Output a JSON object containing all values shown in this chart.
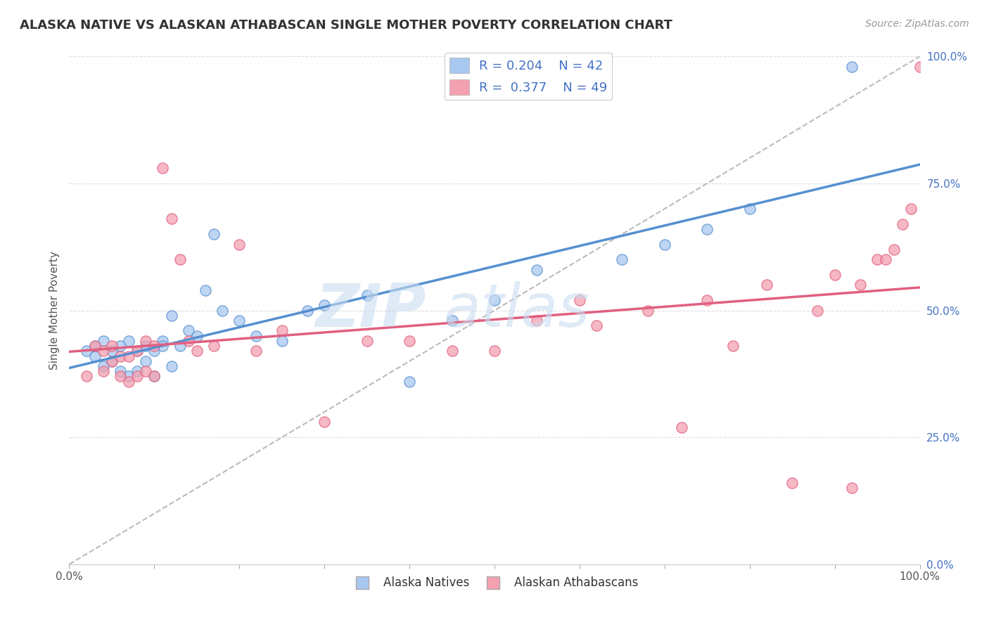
{
  "title": "ALASKA NATIVE VS ALASKAN ATHABASCAN SINGLE MOTHER POVERTY CORRELATION CHART",
  "source": "Source: ZipAtlas.com",
  "ylabel": "Single Mother Poverty",
  "legend_label1": "Alaska Natives",
  "legend_label2": "Alaskan Athabascans",
  "R1": 0.204,
  "N1": 42,
  "R2": 0.377,
  "N2": 49,
  "color_blue": "#A8C8F0",
  "color_pink": "#F4A0B0",
  "color_blue_dark": "#5590D0",
  "color_pink_dark": "#E06080",
  "color_blue_text": "#4472C4",
  "watermark_color": "#C8DCF0",
  "background_color": "#FFFFFF",
  "blue_scatter_x": [
    0.02,
    0.03,
    0.03,
    0.04,
    0.04,
    0.05,
    0.05,
    0.06,
    0.06,
    0.07,
    0.07,
    0.08,
    0.08,
    0.09,
    0.09,
    0.1,
    0.1,
    0.11,
    0.11,
    0.12,
    0.12,
    0.13,
    0.14,
    0.15,
    0.16,
    0.17,
    0.18,
    0.2,
    0.22,
    0.25,
    0.28,
    0.3,
    0.35,
    0.4,
    0.45,
    0.5,
    0.55,
    0.65,
    0.7,
    0.75,
    0.8,
    0.92
  ],
  "blue_scatter_y": [
    0.42,
    0.41,
    0.43,
    0.39,
    0.44,
    0.4,
    0.42,
    0.38,
    0.43,
    0.37,
    0.44,
    0.38,
    0.42,
    0.4,
    0.43,
    0.37,
    0.42,
    0.44,
    0.43,
    0.39,
    0.49,
    0.43,
    0.46,
    0.45,
    0.54,
    0.65,
    0.5,
    0.48,
    0.45,
    0.44,
    0.5,
    0.51,
    0.53,
    0.36,
    0.48,
    0.52,
    0.58,
    0.6,
    0.63,
    0.66,
    0.7,
    0.98
  ],
  "pink_scatter_x": [
    0.02,
    0.03,
    0.04,
    0.04,
    0.05,
    0.05,
    0.06,
    0.06,
    0.07,
    0.07,
    0.08,
    0.08,
    0.09,
    0.09,
    0.1,
    0.1,
    0.11,
    0.12,
    0.13,
    0.14,
    0.15,
    0.17,
    0.2,
    0.22,
    0.25,
    0.3,
    0.35,
    0.4,
    0.45,
    0.5,
    0.55,
    0.6,
    0.62,
    0.68,
    0.72,
    0.75,
    0.78,
    0.82,
    0.85,
    0.88,
    0.9,
    0.92,
    0.93,
    0.95,
    0.96,
    0.97,
    0.98,
    0.99,
    1.0
  ],
  "pink_scatter_y": [
    0.37,
    0.43,
    0.38,
    0.42,
    0.4,
    0.43,
    0.37,
    0.41,
    0.36,
    0.41,
    0.37,
    0.42,
    0.38,
    0.44,
    0.37,
    0.43,
    0.78,
    0.68,
    0.6,
    0.44,
    0.42,
    0.43,
    0.63,
    0.42,
    0.46,
    0.28,
    0.44,
    0.44,
    0.42,
    0.42,
    0.48,
    0.52,
    0.47,
    0.5,
    0.27,
    0.52,
    0.43,
    0.55,
    0.16,
    0.5,
    0.57,
    0.15,
    0.55,
    0.6,
    0.6,
    0.62,
    0.67,
    0.7,
    0.98
  ]
}
